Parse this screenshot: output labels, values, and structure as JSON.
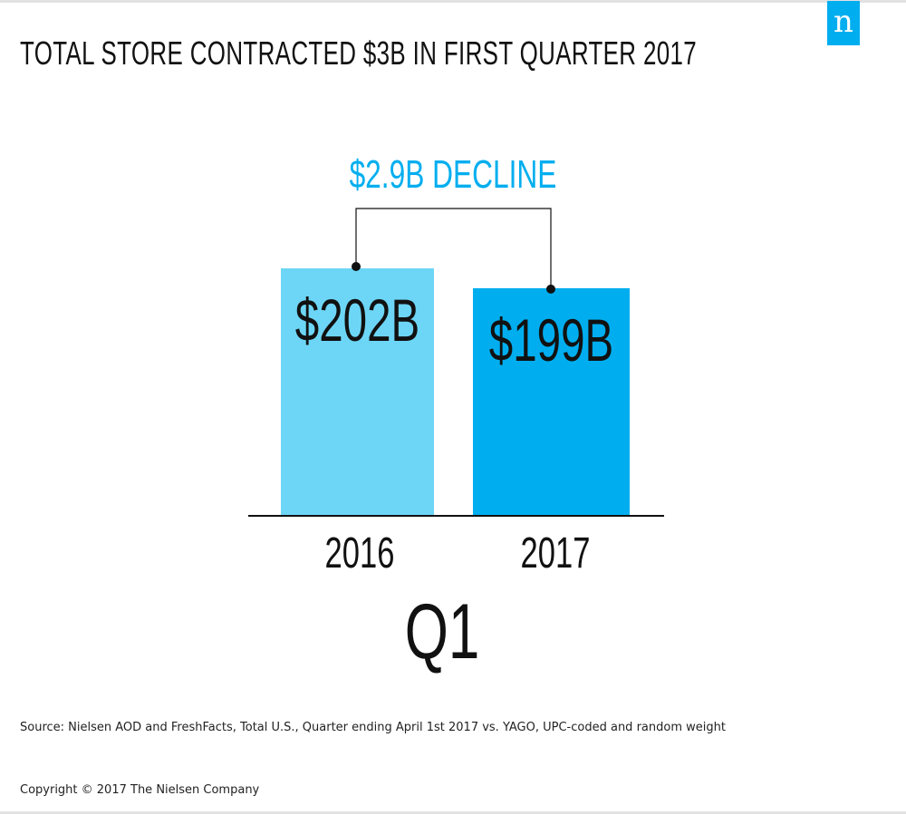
{
  "header": {
    "title": "TOTAL STORE CONTRACTED $3B IN FIRST QUARTER 2017",
    "logo_text": "n"
  },
  "colors": {
    "bar_2016": "#6dd6f6",
    "bar_2017": "#00aeef",
    "accent": "#00aeef",
    "text": "#111111"
  },
  "chart_data": {
    "type": "bar",
    "title": "TOTAL STORE CONTRACTED $3B IN FIRST QUARTER 2017",
    "categories": [
      "2016",
      "2017"
    ],
    "values": [
      202,
      199
    ],
    "value_labels": [
      "$202B",
      "$199B"
    ],
    "unit": "billion USD",
    "group_label": "Q1",
    "annotation": "$2.9B DECLINE",
    "xlabel": "",
    "ylabel": "",
    "ylim": [
      0,
      202
    ],
    "grid": false
  },
  "footer": {
    "source": "Source: Nielsen AOD and FreshFacts, Total U.S., Quarter ending April 1st 2017 vs. YAGO, UPC-coded and random weight",
    "copyright": "Copyright © 2017 The Nielsen Company"
  }
}
